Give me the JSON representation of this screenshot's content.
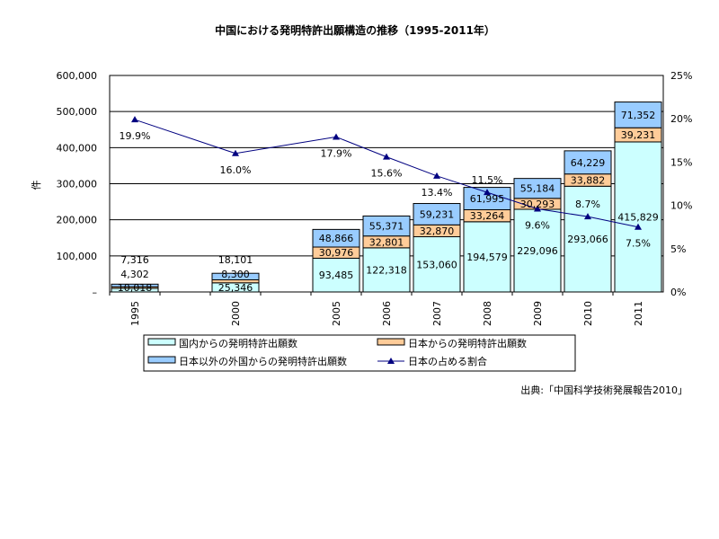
{
  "chart_data": {
    "type": "bar",
    "title": "中国における発明特許出願構造の推移（1995-2011年）",
    "ylabel": "件",
    "ylim": [
      0,
      600000
    ],
    "y2lim": [
      0,
      25
    ],
    "yticks": [
      "–",
      "100,000",
      "200,000",
      "300,000",
      "400,000",
      "500,000",
      "600,000"
    ],
    "y2ticks": [
      "0%",
      "5%",
      "10%",
      "15%",
      "20%",
      "25%"
    ],
    "categories": [
      "1995",
      "",
      "2000",
      "",
      "2005",
      "2006",
      "2007",
      "2008",
      "2009",
      "2010",
      "2011"
    ],
    "series": [
      {
        "name": "国内からの発明特許出願数",
        "color": "#ccffff",
        "values": [
          10018,
          null,
          25346,
          null,
          93485,
          122318,
          153060,
          194579,
          229096,
          293066,
          415829
        ],
        "labels": [
          "10,018",
          "",
          "25,346",
          "",
          "93,485",
          "122,318",
          "153,060",
          "194,579",
          "229,096",
          "293,066",
          "415,829"
        ]
      },
      {
        "name": "日本からの発明特許出願数",
        "color": "#ffcc99",
        "values": [
          4302,
          null,
          8300,
          null,
          30976,
          32801,
          32870,
          33264,
          30293,
          33882,
          39231
        ],
        "labels": [
          "4,302",
          "",
          "8,300",
          "",
          "30,976",
          "32,801",
          "32,870",
          "33,264",
          "30,293",
          "33,882",
          "39,231"
        ]
      },
      {
        "name": "日本以外の外国からの発明特許出願数",
        "color": "#99ccff",
        "values": [
          7316,
          null,
          18101,
          null,
          48866,
          55371,
          59231,
          61995,
          55184,
          64229,
          71352
        ],
        "labels": [
          "7,316",
          "",
          "18,101",
          "",
          "48,866",
          "55,371",
          "59,231",
          "61,995",
          "55,184",
          "64,229",
          "71,352"
        ]
      },
      {
        "name": "日本の占める割合",
        "type": "line",
        "axis": "right",
        "color": "#000080",
        "values": [
          19.9,
          null,
          16.0,
          null,
          17.9,
          15.6,
          13.4,
          11.5,
          9.6,
          8.7,
          7.5
        ],
        "labels": [
          "19.9%",
          "",
          "16.0%",
          "",
          "17.9%",
          "15.6%",
          "13.4%",
          "11.5%",
          "9.6%",
          "8.7%",
          "7.5%"
        ]
      }
    ],
    "legend": "bottom",
    "grid": true,
    "source": "出典:「中国科学技術発展報告2010」"
  }
}
